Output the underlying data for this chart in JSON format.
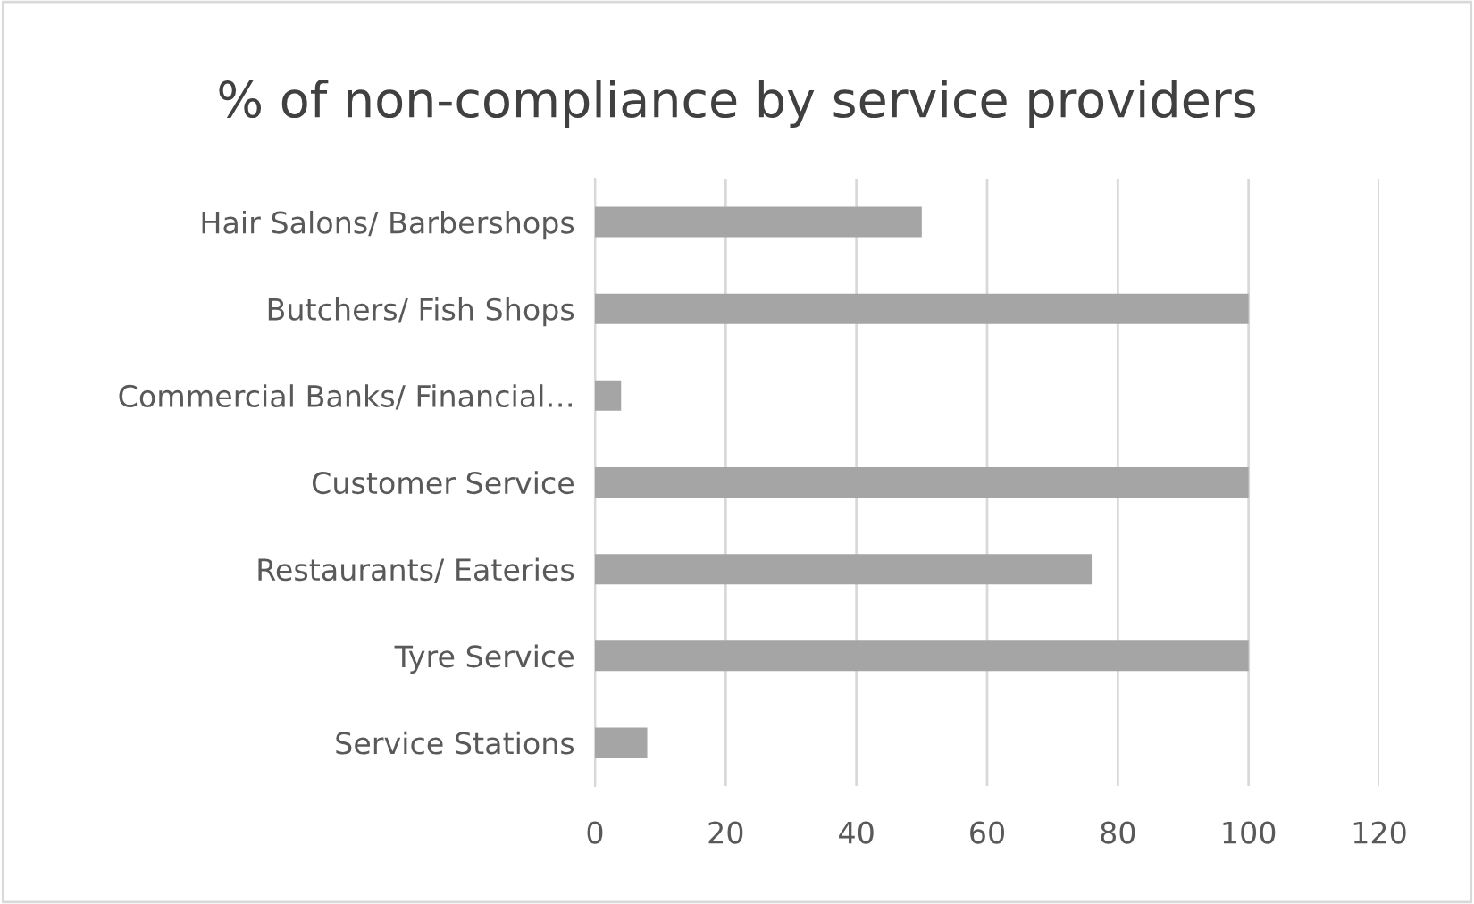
{
  "chart_data": {
    "type": "bar",
    "orientation": "horizontal",
    "title": "% of non-compliance by service providers",
    "categories": [
      "Hair Salons/ Barbershops",
      "Butchers/ Fish Shops",
      "Commercial Banks/ Financial…",
      "Customer Service",
      "Restaurants/ Eateries",
      "Tyre Service",
      "Service Stations"
    ],
    "values": [
      50,
      100,
      4,
      100,
      76,
      100,
      8
    ],
    "color": "#a5a5a5",
    "xlim": [
      0,
      120
    ],
    "xticks": [
      0,
      20,
      40,
      60,
      80,
      100,
      120
    ],
    "grid": "x"
  }
}
